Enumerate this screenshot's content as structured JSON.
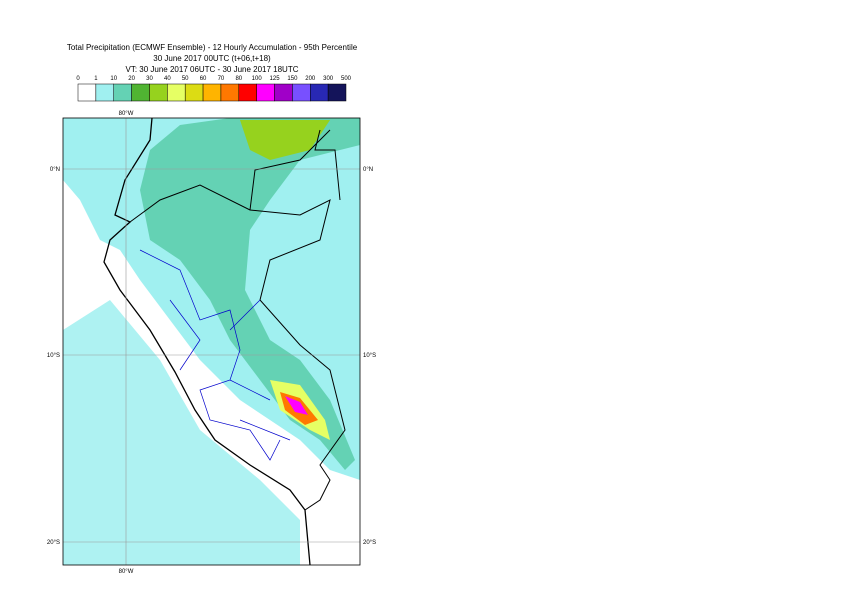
{
  "header": {
    "title": "Total Precipitation (ECMWF Ensemble) - 12 Hourly Accumulation - 95th Percentile",
    "run": "30 June 2017 00UTC (t+06,t+18)",
    "valid": "VT: 30 June 2017 06UTC - 30 June 2017 18UTC"
  },
  "legend": {
    "labels": [
      0,
      1,
      10,
      20,
      30,
      40,
      50,
      60,
      70,
      80,
      100,
      125,
      150,
      200,
      300,
      500
    ],
    "colors": [
      "#ffffff",
      "#a0f0f0",
      "#64d2b4",
      "#50b432",
      "#96d21e",
      "#e6ff64",
      "#dcdc14",
      "#ffb400",
      "#ff7800",
      "#ff0000",
      "#ff00ff",
      "#a000c8",
      "#7850ff",
      "#2828b4",
      "#14145a"
    ]
  },
  "map": {
    "lon_labels": [
      "80°W"
    ],
    "lat_labels": [
      "0°N",
      "10°S",
      "20°S"
    ]
  }
}
